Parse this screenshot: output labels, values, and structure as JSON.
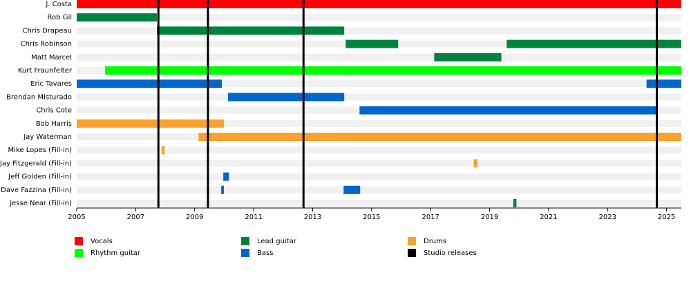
{
  "chart_data": {
    "type": "timeline",
    "categories": [
      "J. Costa",
      "Rob Gil",
      "Chris Drapeau",
      "Chris Robinson",
      "Matt Marcel",
      "Kurt Fraunfelter",
      "Eric Tavares",
      "Brendan Misturado",
      "Chris Cote",
      "Bob Harris",
      "Jay Waterman",
      "Mike Lopes (Fill-in)",
      "Jay Fitzgerald (Fill-in)",
      "Jeff Golden (Fill-in)",
      "Dave Fazzina (Fill-in)",
      "Jesse Near (Fill-in)"
    ],
    "series": [
      {
        "name": "Vocals",
        "color": "#ff0000",
        "values": [
          [
            [
              2005,
              2025.5
            ]
          ],
          null,
          null,
          null,
          null,
          null,
          null,
          null,
          null,
          null,
          null,
          null,
          null,
          null,
          null,
          null
        ]
      },
      {
        "name": "Lead guitar",
        "color": "#00843d",
        "values": [
          null,
          [
            [
              2005,
              2007.72
            ]
          ],
          [
            [
              2007.72,
              2014.07
            ]
          ],
          [
            [
              2014.12,
              2015.9
            ],
            [
              2019.58,
              2025.5
            ]
          ],
          [
            [
              2017.12,
              2019.4
            ]
          ],
          null,
          null,
          null,
          null,
          null,
          null,
          null,
          null,
          null,
          null,
          [
            [
              2019.8,
              2019.91
            ]
          ]
        ]
      },
      {
        "name": "Drums",
        "color": "#f9a12e",
        "values": [
          null,
          null,
          null,
          null,
          null,
          null,
          null,
          null,
          null,
          [
            [
              2005,
              2009.99
            ]
          ],
          [
            [
              2009.13,
              2025.5
            ]
          ],
          [
            [
              2007.88,
              2007.98
            ]
          ],
          [
            [
              2018.46,
              2018.58
            ]
          ],
          null,
          null,
          null
        ]
      },
      {
        "name": "Rhythm guitar",
        "color": "#00ff00",
        "values": [
          null,
          null,
          null,
          null,
          null,
          [
            [
              2005.96,
              2025.5
            ]
          ],
          null,
          null,
          null,
          null,
          null,
          null,
          null,
          null,
          null,
          null
        ]
      },
      {
        "name": "Bass",
        "color": "#0066cc",
        "values": [
          null,
          null,
          null,
          null,
          null,
          null,
          [
            [
              2005,
              2009.92
            ],
            [
              2024.32,
              2025.5
            ]
          ],
          [
            [
              2010.13,
              2014.07
            ]
          ],
          [
            [
              2014.59,
              2024.67
            ]
          ],
          null,
          null,
          null,
          null,
          [
            [
              2009.97,
              2010.16
            ]
          ],
          [
            [
              2009.9,
              2009.99
            ],
            [
              2014.05,
              2014.61
            ]
          ],
          null
        ]
      }
    ],
    "releases": {
      "name": "Studio releases",
      "color": "#000000",
      "values": [
        2007.77,
        2009.45,
        2012.69,
        2024.67
      ]
    },
    "xlim": [
      2005,
      2025.5
    ],
    "xticks": [
      2005,
      2007,
      2009,
      2011,
      2013,
      2015,
      2017,
      2019,
      2021,
      2023,
      2025
    ]
  }
}
